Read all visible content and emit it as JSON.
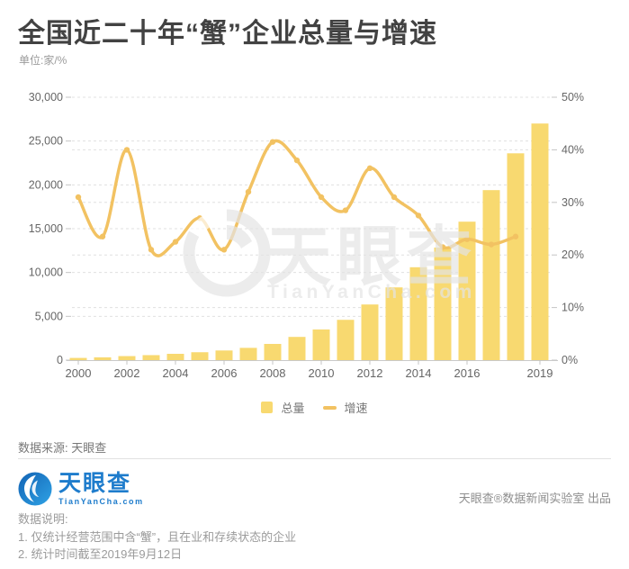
{
  "header": {
    "title": "全国近二十年“蟹”企业总量与增速",
    "unit_label": "单位:家/%"
  },
  "chart_data": {
    "type": "bar",
    "title": "全国近二十年“蟹”企业总量与增速",
    "unit": "家/%",
    "categories": [
      2000,
      2001,
      2002,
      2003,
      2004,
      2005,
      2006,
      2007,
      2008,
      2009,
      2010,
      2011,
      2012,
      2013,
      2014,
      2015,
      2016,
      2017,
      2018,
      2019
    ],
    "x_ticks": [
      {
        "i": 0,
        "label": "2000"
      },
      {
        "i": 2,
        "label": "2002"
      },
      {
        "i": 4,
        "label": "2004"
      },
      {
        "i": 6,
        "label": "2006"
      },
      {
        "i": 8,
        "label": "2008"
      },
      {
        "i": 10,
        "label": "2010"
      },
      {
        "i": 12,
        "label": "2012"
      },
      {
        "i": 14,
        "label": "2014"
      },
      {
        "i": 16,
        "label": "2016"
      },
      {
        "i": 19,
        "label": "2019"
      }
    ],
    "series": [
      {
        "name": "总量",
        "type": "bar",
        "axis": "left",
        "color": "#F8D970",
        "values": [
          250,
          320,
          460,
          570,
          720,
          900,
          1100,
          1400,
          1850,
          2650,
          3500,
          4600,
          6350,
          8300,
          10600,
          12850,
          15800,
          19400,
          23600,
          27000
        ]
      },
      {
        "name": "增速",
        "type": "line",
        "axis": "right",
        "color": "#F2C262",
        "values": [
          31,
          23.5,
          40,
          21,
          22.5,
          27,
          21,
          32,
          41.5,
          38,
          31,
          28.5,
          36.5,
          31,
          27.5,
          21.5,
          23,
          22,
          23.5
        ]
      }
    ],
    "left_axis": {
      "min": 0,
      "max": 30000,
      "ticks": [
        {
          "v": 0,
          "label": "0"
        },
        {
          "v": 5000,
          "label": "5,000"
        },
        {
          "v": 10000,
          "label": "10,000"
        },
        {
          "v": 15000,
          "label": "15,000"
        },
        {
          "v": 20000,
          "label": "20,000"
        },
        {
          "v": 25000,
          "label": "25,000"
        },
        {
          "v": 30000,
          "label": "30,000"
        }
      ]
    },
    "right_axis": {
      "min": 0,
      "max": 50,
      "ticks": [
        {
          "v": 0,
          "label": "0%"
        },
        {
          "v": 10,
          "label": "10%"
        },
        {
          "v": 20,
          "label": "20%"
        },
        {
          "v": 30,
          "label": "30%"
        },
        {
          "v": 40,
          "label": "40%"
        },
        {
          "v": 50,
          "label": "50%"
        }
      ]
    },
    "legend_position": "bottom",
    "grid": "dashed"
  },
  "watermark": {
    "text": "天眼查",
    "subtext": "TianYanCha.com"
  },
  "source": {
    "label": "数据来源: 天眼查"
  },
  "footer": {
    "logo_text": "天眼查",
    "logo_sub": "TianYanCha.com",
    "credit": "天眼查®数据新闻实验室 出品"
  },
  "notes": {
    "heading": "数据说明:",
    "line1": "1. 仅统计经营范围中含“蟹”，且在业和存续状态的企业",
    "line2": "2. 统计时间截至2019年9月12日"
  },
  "colors": {
    "bar": "#F8D970",
    "line": "#F2C262",
    "logo_blue": "#1E7CCC",
    "grid": "#e0e0e0",
    "axis": "#c9c9c9"
  }
}
